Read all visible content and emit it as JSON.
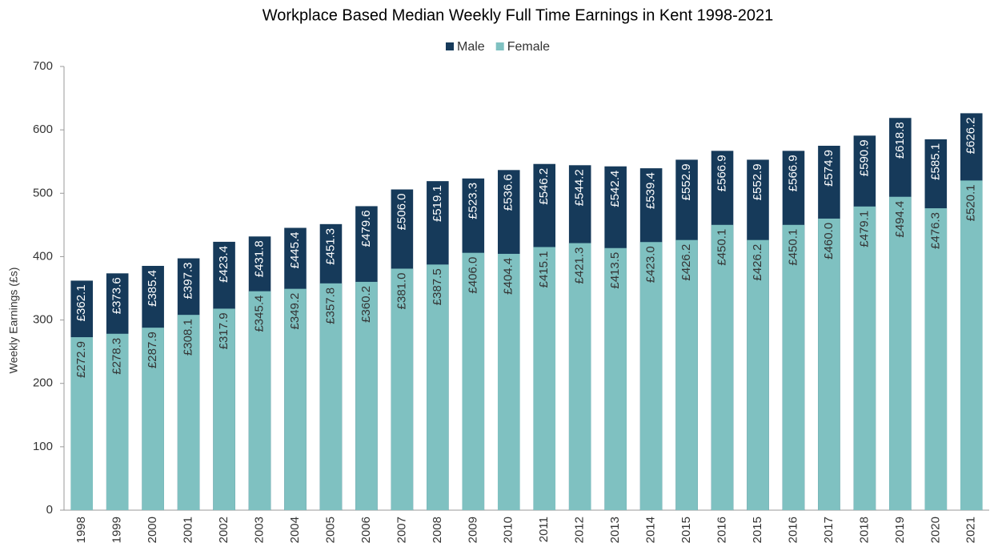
{
  "chart_data": {
    "type": "bar",
    "title": "Workplace Based Median Weekly Full Time Earnings in Kent 1998-2021",
    "y_label": "Weekly Earnings (£s)",
    "categories": [
      "1998",
      "1999",
      "2000",
      "2001",
      "2002",
      "2003",
      "2004",
      "2005",
      "2006",
      "2007",
      "2008",
      "2009",
      "2010",
      "2011",
      "2012",
      "2013",
      "2014",
      "2015",
      "2016",
      "2015",
      "2016",
      "2017",
      "2018",
      "2019",
      "2020",
      "2021"
    ],
    "series": [
      {
        "name": "Male",
        "color": "#163a5a",
        "values": [
          362.1,
          373.6,
          385.4,
          397.3,
          423.4,
          431.8,
          445.4,
          451.3,
          479.6,
          506.0,
          519.1,
          523.3,
          536.6,
          546.2,
          544.2,
          542.4,
          539.4,
          552.9,
          566.9,
          552.9,
          566.9,
          574.9,
          590.9,
          618.8,
          585.1,
          626.2
        ],
        "value_labels": [
          "£362.1",
          "£373.6",
          "£385.4",
          "£397.3",
          "£423.4",
          "£431.8",
          "£445.4",
          "£451.3",
          "£479.6",
          "£506.0",
          "£519.1",
          "£523.3",
          "£536.6",
          "£546.2",
          "£544.2",
          "£542.4",
          "£539.4",
          "£552.9",
          "£566.9",
          "£552.9",
          "£566.9",
          "£574.9",
          "£590.9",
          "£618.8",
          "£585.1",
          "£626.2"
        ]
      },
      {
        "name": "Female",
        "color": "#7fc1c1",
        "values": [
          272.9,
          278.3,
          287.9,
          308.1,
          317.9,
          345.4,
          349.2,
          357.8,
          360.2,
          381.0,
          387.5,
          406.0,
          404.4,
          415.1,
          421.3,
          413.5,
          423.0,
          426.2,
          450.1,
          426.2,
          450.1,
          460.0,
          479.1,
          494.4,
          476.3,
          520.1
        ],
        "value_labels": [
          "£272.9",
          "£278.3",
          "£287.9",
          "£308.1",
          "£317.9",
          "£345.4",
          "£349.2",
          "£357.8",
          "£360.2",
          "£381.0",
          "£387.5",
          "£406.0",
          "£404.4",
          "£415.1",
          "£421.3",
          "£413.5",
          "£423.0",
          "£426.2",
          "£450.1",
          "£426.2",
          "£450.1",
          "£460.0",
          "£479.1",
          "£494.4",
          "£476.3",
          "£520.1"
        ]
      }
    ],
    "ylim": [
      0,
      700
    ],
    "yticks": [
      0,
      100,
      200,
      300,
      400,
      500,
      600,
      700
    ],
    "grid": false,
    "legend": "top"
  }
}
